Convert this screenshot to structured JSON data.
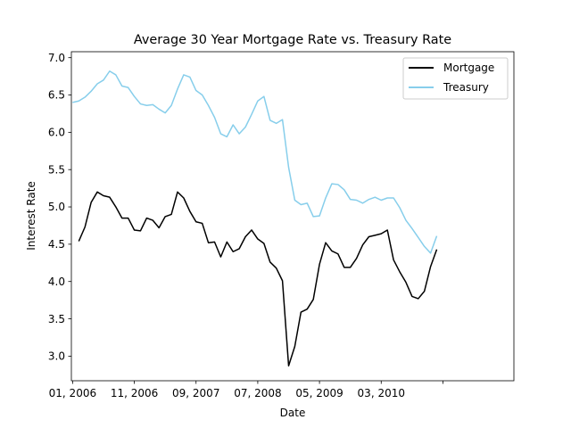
{
  "chart_data": {
    "type": "line",
    "title": "Average 30 Year Mortgage Rate vs. Treasury Rate",
    "xlabel": "Date",
    "ylabel": "Interest Rate",
    "ylim": [
      2.67,
      7.08
    ],
    "xlim": [
      -0.2,
      71.5
    ],
    "yticks": [
      "3.0",
      "3.5",
      "4.0",
      "4.5",
      "5.0",
      "5.5",
      "6.0",
      "6.5",
      "7.0"
    ],
    "xticks": [
      {
        "pos": 0,
        "label": "01, 2006"
      },
      {
        "pos": 10,
        "label": "11, 2006"
      },
      {
        "pos": 20,
        "label": "09, 2007"
      },
      {
        "pos": 30,
        "label": "07, 2008"
      },
      {
        "pos": 40,
        "label": "05, 2009"
      },
      {
        "pos": 50,
        "label": "03, 2010"
      },
      {
        "pos": 60,
        "label": ""
      }
    ],
    "legend": "upper-right",
    "series": [
      {
        "name": "Mortgage",
        "color": "#000000",
        "x_start": 1,
        "values": [
          4.54,
          4.73,
          5.06,
          5.2,
          5.15,
          5.13,
          5.0,
          4.85,
          4.85,
          4.69,
          4.68,
          4.85,
          4.82,
          4.72,
          4.87,
          4.9,
          5.2,
          5.12,
          4.94,
          4.8,
          4.78,
          4.52,
          4.53,
          4.33,
          4.53,
          4.4,
          4.44,
          4.6,
          4.69,
          4.57,
          4.51,
          4.26,
          4.18,
          4.01,
          2.87,
          3.13,
          3.59,
          3.63,
          3.76,
          4.23,
          4.52,
          4.41,
          4.37,
          4.19,
          4.19,
          4.31,
          4.49,
          4.6,
          4.62,
          4.64,
          4.69,
          4.29,
          4.13,
          3.99,
          3.8,
          3.77,
          3.87,
          4.2,
          4.43
        ]
      },
      {
        "name": "Treasury",
        "color": "#87ceeb",
        "x_start": 0,
        "values": [
          6.4,
          6.42,
          6.47,
          6.55,
          6.65,
          6.7,
          6.82,
          6.77,
          6.62,
          6.6,
          6.48,
          6.38,
          6.36,
          6.37,
          6.31,
          6.26,
          6.36,
          6.58,
          6.77,
          6.74,
          6.56,
          6.5,
          6.36,
          6.2,
          5.98,
          5.94,
          6.1,
          5.98,
          6.07,
          6.24,
          6.42,
          6.48,
          6.16,
          6.12,
          6.17,
          5.53,
          5.09,
          5.03,
          5.05,
          4.87,
          4.88,
          5.12,
          5.31,
          5.3,
          5.23,
          5.1,
          5.09,
          5.05,
          5.1,
          5.13,
          5.09,
          5.12,
          5.12,
          4.99,
          4.82,
          4.71,
          4.59,
          4.47,
          4.38,
          4.61
        ]
      }
    ]
  }
}
